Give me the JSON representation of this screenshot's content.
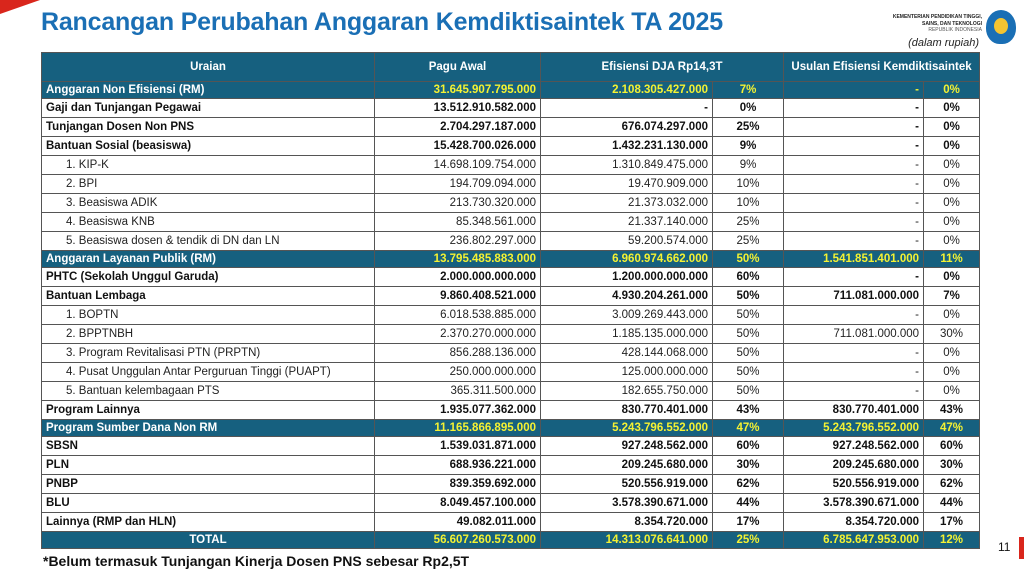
{
  "title": "Rancangan Perubahan Anggaran Kemdiktisaintek TA 2025",
  "logo": {
    "line1": "KEMENTERIAN PENDIDIKAN TINGGI,",
    "line2": "SAINS, DAN TEKNOLOGI",
    "line3": "REPUBLIK INDONESIA"
  },
  "unit_note": "(dalam rupiah)",
  "colors": {
    "title": "#1a6fb5",
    "header_bg": "#16607f",
    "highlight_text": "#f5f232",
    "accent_red": "#d9261c"
  },
  "table": {
    "headers": [
      "Uraian",
      "Pagu Awal",
      "Efisiensi DJA Rp14,3T",
      "Usulan Efisiensi Kemdiktisaintek"
    ],
    "rows": [
      {
        "kind": "section",
        "cells": [
          "Anggaran Non Efisiensi (RM)",
          "31.645.907.795.000",
          "2.108.305.427.000",
          "7%",
          "-",
          "0%"
        ]
      },
      {
        "kind": "main",
        "cells": [
          "Gaji dan Tunjangan Pegawai",
          "13.512.910.582.000",
          "-",
          "0%",
          "-",
          "0%"
        ]
      },
      {
        "kind": "main",
        "cells": [
          "Tunjangan Dosen Non PNS",
          "2.704.297.187.000",
          "676.074.297.000",
          "25%",
          "-",
          "0%"
        ]
      },
      {
        "kind": "main",
        "cells": [
          "Bantuan Sosial (beasiswa)",
          "15.428.700.026.000",
          "1.432.231.130.000",
          "9%",
          "-",
          "0%"
        ]
      },
      {
        "kind": "sub",
        "cells": [
          "1. KIP-K",
          "14.698.109.754.000",
          "1.310.849.475.000",
          "9%",
          "-",
          "0%"
        ]
      },
      {
        "kind": "sub",
        "cells": [
          "2. BPI",
          "194.709.094.000",
          "19.470.909.000",
          "10%",
          "-",
          "0%"
        ]
      },
      {
        "kind": "sub",
        "cells": [
          "3. Beasiswa ADIK",
          "213.730.320.000",
          "21.373.032.000",
          "10%",
          "-",
          "0%"
        ]
      },
      {
        "kind": "sub",
        "cells": [
          "4. Beasiswa KNB",
          "85.348.561.000",
          "21.337.140.000",
          "25%",
          "-",
          "0%"
        ]
      },
      {
        "kind": "sub",
        "cells": [
          "5. Beasiswa dosen & tendik di DN dan LN",
          "236.802.297.000",
          "59.200.574.000",
          "25%",
          "-",
          "0%"
        ]
      },
      {
        "kind": "section",
        "cells": [
          "Anggaran Layanan Publik (RM)",
          "13.795.485.883.000",
          "6.960.974.662.000",
          "50%",
          "1.541.851.401.000",
          "11%"
        ]
      },
      {
        "kind": "main",
        "cells": [
          "PHTC (Sekolah Unggul Garuda)",
          "2.000.000.000.000",
          "1.200.000.000.000",
          "60%",
          "-",
          "0%"
        ]
      },
      {
        "kind": "main",
        "cells": [
          "Bantuan Lembaga",
          "9.860.408.521.000",
          "4.930.204.261.000",
          "50%",
          "711.081.000.000",
          "7%"
        ]
      },
      {
        "kind": "sub",
        "cells": [
          "1. BOPTN",
          "6.018.538.885.000",
          "3.009.269.443.000",
          "50%",
          "-",
          "0%"
        ]
      },
      {
        "kind": "sub",
        "cells": [
          "2. BPPTNBH",
          "2.370.270.000.000",
          "1.185.135.000.000",
          "50%",
          "711.081.000.000",
          "30%"
        ]
      },
      {
        "kind": "sub",
        "cells": [
          "3. Program Revitalisasi PTN (PRPTN)",
          "856.288.136.000",
          "428.144.068.000",
          "50%",
          "-",
          "0%"
        ]
      },
      {
        "kind": "sub",
        "cells": [
          "4. Pusat Unggulan Antar Perguruan Tinggi (PUAPT)",
          "250.000.000.000",
          "125.000.000.000",
          "50%",
          "-",
          "0%"
        ]
      },
      {
        "kind": "sub",
        "cells": [
          "5. Bantuan kelembagaan PTS",
          "365.311.500.000",
          "182.655.750.000",
          "50%",
          "-",
          "0%"
        ]
      },
      {
        "kind": "main",
        "cells": [
          "Program Lainnya",
          "1.935.077.362.000",
          "830.770.401.000",
          "43%",
          "830.770.401.000",
          "43%"
        ]
      },
      {
        "kind": "section",
        "cells": [
          "Program Sumber Dana Non RM",
          "11.165.866.895.000",
          "5.243.796.552.000",
          "47%",
          "5.243.796.552.000",
          "47%"
        ]
      },
      {
        "kind": "main",
        "cells": [
          "SBSN",
          "1.539.031.871.000",
          "927.248.562.000",
          "60%",
          "927.248.562.000",
          "60%"
        ]
      },
      {
        "kind": "main",
        "cells": [
          "PLN",
          "688.936.221.000",
          "209.245.680.000",
          "30%",
          "209.245.680.000",
          "30%"
        ]
      },
      {
        "kind": "main",
        "cells": [
          "PNBP",
          "839.359.692.000",
          "520.556.919.000",
          "62%",
          "520.556.919.000",
          "62%"
        ]
      },
      {
        "kind": "main",
        "cells": [
          "BLU",
          "8.049.457.100.000",
          "3.578.390.671.000",
          "44%",
          "3.578.390.671.000",
          "44%"
        ]
      },
      {
        "kind": "main",
        "cells": [
          "Lainnya (RMP dan HLN)",
          "49.082.011.000",
          "8.354.720.000",
          "17%",
          "8.354.720.000",
          "17%"
        ]
      },
      {
        "kind": "total",
        "cells": [
          "TOTAL",
          "56.607.260.573.000",
          "14.313.076.641.000",
          "25%",
          "6.785.647.953.000",
          "12%"
        ]
      }
    ]
  },
  "footnote": "*Belum termasuk Tunjangan Kinerja Dosen PNS sebesar Rp2,5T",
  "page_number": "11"
}
